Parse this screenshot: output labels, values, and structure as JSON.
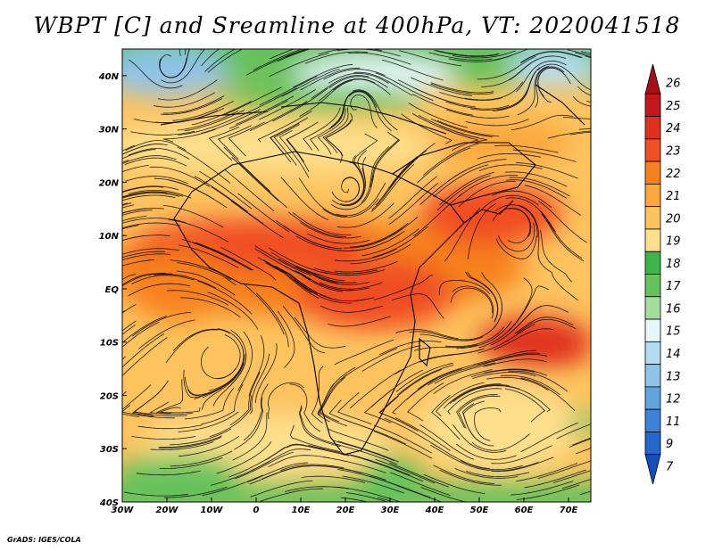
{
  "title": "WBPT [C] and Sreamline at 400hPa, VT: 2020041518",
  "credit": "GrADS: IGES/COLA",
  "axes": {
    "lon_labels": [
      "30W",
      "20W",
      "10W",
      "0",
      "10E",
      "20E",
      "30E",
      "40E",
      "50E",
      "60E",
      "70E"
    ],
    "lon_values": [
      -30,
      -20,
      -10,
      0,
      10,
      20,
      30,
      40,
      50,
      60,
      70
    ],
    "lat_labels": [
      "40N",
      "30N",
      "20N",
      "10N",
      "EQ",
      "10S",
      "20S",
      "30S",
      "40S"
    ],
    "lat_values": [
      40,
      30,
      20,
      10,
      0,
      -10,
      -20,
      -30,
      -40
    ],
    "lon_range": [
      -30,
      75
    ],
    "lat_range": [
      -40,
      45
    ]
  },
  "colorbar": {
    "labels": [
      "26",
      "25",
      "24",
      "23",
      "22",
      "21",
      "20",
      "19",
      "18",
      "17",
      "16",
      "15",
      "14",
      "13",
      "12",
      "11",
      "9",
      "7"
    ],
    "colors": [
      "#a50f15",
      "#c4161c",
      "#e0301e",
      "#f04e23",
      "#f7811f",
      "#fba73a",
      "#fdc35e",
      "#fedf8c",
      "#3cb64a",
      "#66c25c",
      "#a5de9a",
      "#e6f7fa",
      "#b3dcf3",
      "#8fc3ea",
      "#60a5e0",
      "#3d84d6",
      "#2366cc",
      "#1450bb"
    ]
  },
  "wbpt_field": {
    "unit": "C",
    "description_keys": [
      "cold_north",
      "warm_equatorial_band",
      "cool_south"
    ]
  }
}
